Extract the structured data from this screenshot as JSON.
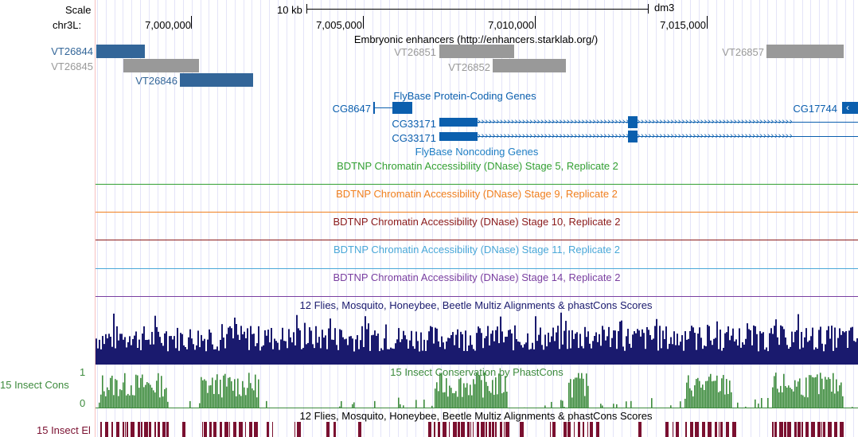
{
  "ruler": {
    "scale_label": "Scale",
    "scale_value": "10 kb",
    "assembly": "dm3",
    "chrom_label": "chr3L:",
    "positions": [
      "7,000,000",
      "7,005,000",
      "7,010,000",
      "7,015,000"
    ]
  },
  "tracks": {
    "enhancers": {
      "title": "Embryonic enhancers (http://enhancers.starklab.org/)",
      "colors": {
        "selected": "#336699",
        "other": "#999999"
      },
      "items": [
        "VT26844",
        "VT26845",
        "VT26846",
        "VT26851",
        "VT26852",
        "VT26857"
      ]
    },
    "coding_genes": {
      "title": "FlyBase Protein-Coding Genes",
      "color": "#0b5fae",
      "items": [
        "CG8647",
        "CG33171",
        "CG33171",
        "CG17744"
      ]
    },
    "noncoding_genes": {
      "title": "FlyBase Noncoding Genes",
      "color": "#1f7fc4"
    },
    "dnase": [
      {
        "title": "BDTNP Chromatin Accessibility (DNase) Stage 5, Replicate 2",
        "color": "#33a033"
      },
      {
        "title": "BDTNP Chromatin Accessibility (DNase) Stage 9, Replicate 2",
        "color": "#f07f1e"
      },
      {
        "title": "BDTNP Chromatin Accessibility (DNase) Stage 10, Replicate 2",
        "color": "#8b1a1a"
      },
      {
        "title": "BDTNP Chromatin Accessibility (DNase) Stage 11, Replicate 2",
        "color": "#4aa8d8"
      },
      {
        "title": "BDTNP Chromatin Accessibility (DNase) Stage 14, Replicate 2",
        "color": "#7a3fa0"
      }
    ],
    "multiz": {
      "title": "12 Flies, Mosquito, Honeybee, Beetle Multiz Alignments & phastCons Scores",
      "color": "#1a1a6e"
    },
    "phastcons": {
      "title": "15 Insect Conservation by PhastCons",
      "side_label": "15 Insect Cons",
      "y_max": "1",
      "y_min": "0",
      "color": "#3d8b3d"
    },
    "elements": {
      "title": "12 Flies, Mosquito, Honeybee, Beetle Multiz Alignments & phastCons Scores",
      "side_label": "15 Insect El",
      "color": "#7a1030"
    }
  }
}
